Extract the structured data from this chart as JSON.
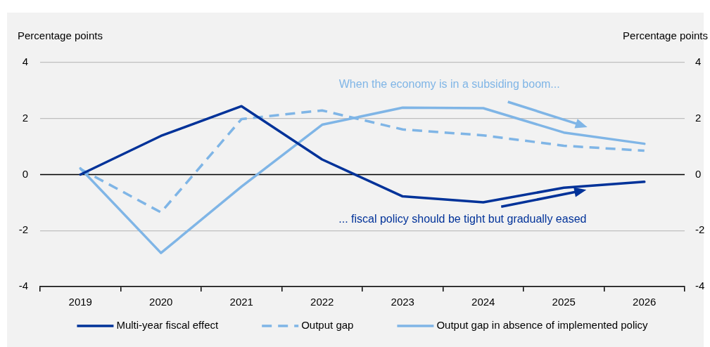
{
  "chart_data": {
    "type": "line",
    "ylabel": "Percentage points",
    "y2label": "Percentage points",
    "categories": [
      "2019",
      "2020",
      "2021",
      "2022",
      "2023",
      "2024",
      "2025",
      "2026"
    ],
    "series": [
      {
        "name": "Multi-year fiscal effect",
        "color": "#003299",
        "values": [
          0.0,
          1.38,
          2.44,
          0.54,
          -0.78,
          -0.99,
          -0.47,
          -0.26
        ]
      },
      {
        "name": "Output gap",
        "color": "#7fb5e6",
        "line_style": "dashed",
        "values": [
          0.2,
          -1.35,
          1.98,
          2.29,
          1.61,
          1.4,
          1.03,
          0.85
        ]
      },
      {
        "name": "Output gap in absence of implemented policy",
        "color": "#7fb5e6",
        "values": [
          0.22,
          -2.8,
          -0.43,
          1.78,
          2.39,
          2.37,
          1.5,
          1.1
        ]
      }
    ],
    "ylim": [
      -4,
      4
    ],
    "yticks": [
      -4,
      -2,
      0,
      2,
      4
    ],
    "y2lim": [
      -4,
      4
    ],
    "y2ticks": [
      -4,
      -2,
      0,
      2,
      4
    ],
    "grid": "y",
    "legend": "bottom",
    "marker": "none",
    "line_style": "solid",
    "ref_lines": [
      {
        "axis": "y",
        "value": 0,
        "color": "#000000"
      }
    ],
    "annotations": [
      {
        "text": "When the economy is in a subsiding boom...",
        "x": "2024",
        "y": 2.37
      },
      {
        "text": "... fiscal policy should be tight but gradually eased",
        "x": "2025",
        "y": -0.47
      }
    ]
  }
}
